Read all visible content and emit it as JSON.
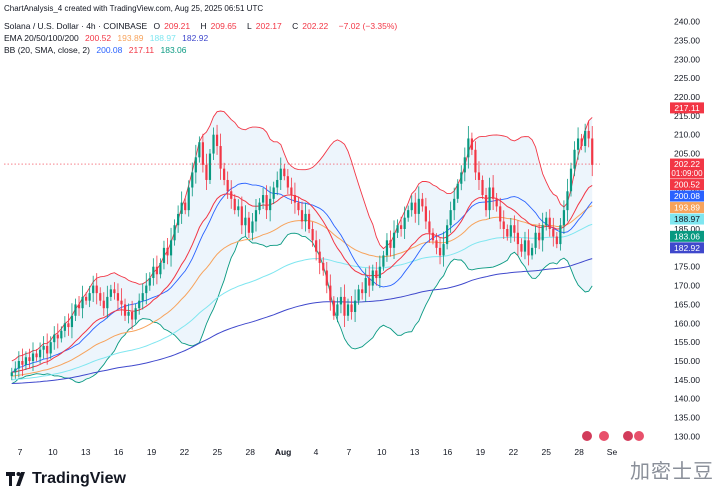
{
  "header": {
    "created_by": "ChartAnalysis_4 created with TradingView.com, Aug 25, 2025 06:51 UTC"
  },
  "legend": {
    "symbol": "Solana / U.S. Dollar · 4h · COINBASE",
    "ohlc": {
      "o_label": "O",
      "o": "209.21",
      "h_label": "H",
      "h": "209.65",
      "l_label": "L",
      "l": "202.17",
      "c_label": "C",
      "c": "202.22",
      "chg": "−7.02 (−3.35%)"
    },
    "ema": {
      "label": "EMA 20/50/100/200",
      "v20": "200.52",
      "v50": "193.89",
      "v100": "188.97",
      "v200": "182.92"
    },
    "bb": {
      "label": "BB (20, SMA, close, 2)",
      "basis": "200.08",
      "upper": "217.11",
      "lower": "183.06"
    }
  },
  "branding": {
    "logo_text": "TradingView",
    "watermark_text": "加密士豆"
  },
  "colors": {
    "up": "#089981",
    "down": "#f23645",
    "ema20": "#f23645",
    "ema50": "#f7a35c",
    "ema100": "#7fe6f0",
    "ema200": "#3f48cc",
    "bb_basis": "#2962ff",
    "bb_upper": "#f23645",
    "bb_lower": "#089981",
    "bb_fill": "#e3f0fb",
    "price_line": "#f23645"
  },
  "chart_data": {
    "type": "candlestick",
    "y_axis": {
      "min": 128,
      "max": 242,
      "ticks": [
        "240.00",
        "235.00",
        "230.00",
        "225.00",
        "220.00",
        "215.00",
        "210.00",
        "205.00",
        "195.00",
        "185.00",
        "175.00",
        "170.00",
        "165.00",
        "160.00",
        "155.00",
        "150.00",
        "145.00",
        "140.00",
        "135.00",
        "130.00"
      ]
    },
    "x_axis": {
      "ticks": [
        "7",
        "10",
        "13",
        "16",
        "19",
        "22",
        "25",
        "28",
        "Aug",
        "4",
        "7",
        "10",
        "13",
        "16",
        "19",
        "22",
        "25",
        "28",
        "Se"
      ]
    },
    "price_tags": [
      {
        "text": "217.11",
        "value": 217.11,
        "bg": "#f23645",
        "fg": "#ffffff"
      },
      {
        "text": "202.22",
        "value": 202.22,
        "bg": "#f23645",
        "fg": "#ffffff",
        "sub": "01:09:00"
      },
      {
        "text": "200.52",
        "value": 200.52,
        "bg": "#f23645",
        "fg": "#ffffff"
      },
      {
        "text": "200.08",
        "value": 200.08,
        "bg": "#2962ff",
        "fg": "#ffffff"
      },
      {
        "text": "193.89",
        "value": 193.89,
        "bg": "#f7a35c",
        "fg": "#ffffff"
      },
      {
        "text": "188.97",
        "value": 188.97,
        "bg": "#7fe6f0",
        "fg": "#131722"
      },
      {
        "text": "183.06",
        "value": 183.06,
        "bg": "#089981",
        "fg": "#ffffff"
      },
      {
        "text": "182.92",
        "value": 182.92,
        "bg": "#3f48cc",
        "fg": "#ffffff"
      }
    ],
    "last_price": 202.22,
    "closes": [
      147,
      148,
      150,
      149,
      151,
      150,
      152,
      151,
      153,
      154,
      152,
      155,
      157,
      156,
      158,
      160,
      159,
      162,
      165,
      164,
      167,
      166,
      168,
      170,
      168,
      166,
      164,
      167,
      169,
      168,
      166,
      165,
      162,
      163,
      161,
      164,
      166,
      168,
      170,
      172,
      175,
      173,
      176,
      180,
      178,
      182,
      186,
      189,
      192,
      190,
      196,
      200,
      204,
      208,
      202,
      198,
      205,
      210,
      207,
      201,
      198,
      195,
      193,
      190,
      191,
      186,
      188,
      184,
      187,
      190,
      192,
      194,
      190,
      193,
      196,
      198,
      201,
      199,
      196,
      194,
      192,
      190,
      187,
      189,
      185,
      182,
      179,
      176,
      174,
      170,
      166,
      162,
      165,
      167,
      162,
      165,
      163,
      166,
      169,
      168,
      172,
      170,
      174,
      172,
      175,
      178,
      182,
      180,
      184,
      186,
      185,
      188,
      190,
      192,
      189,
      193,
      191,
      187,
      184,
      182,
      180,
      178,
      181,
      186,
      190,
      193,
      197,
      200,
      204,
      209,
      206,
      200,
      198,
      194,
      190,
      196,
      193,
      191,
      187,
      185,
      183,
      186,
      184,
      181,
      179,
      182,
      178,
      180,
      184,
      182,
      186,
      188,
      185,
      183,
      181,
      186,
      190,
      195,
      201,
      206,
      209,
      207,
      211,
      209,
      202
    ]
  }
}
